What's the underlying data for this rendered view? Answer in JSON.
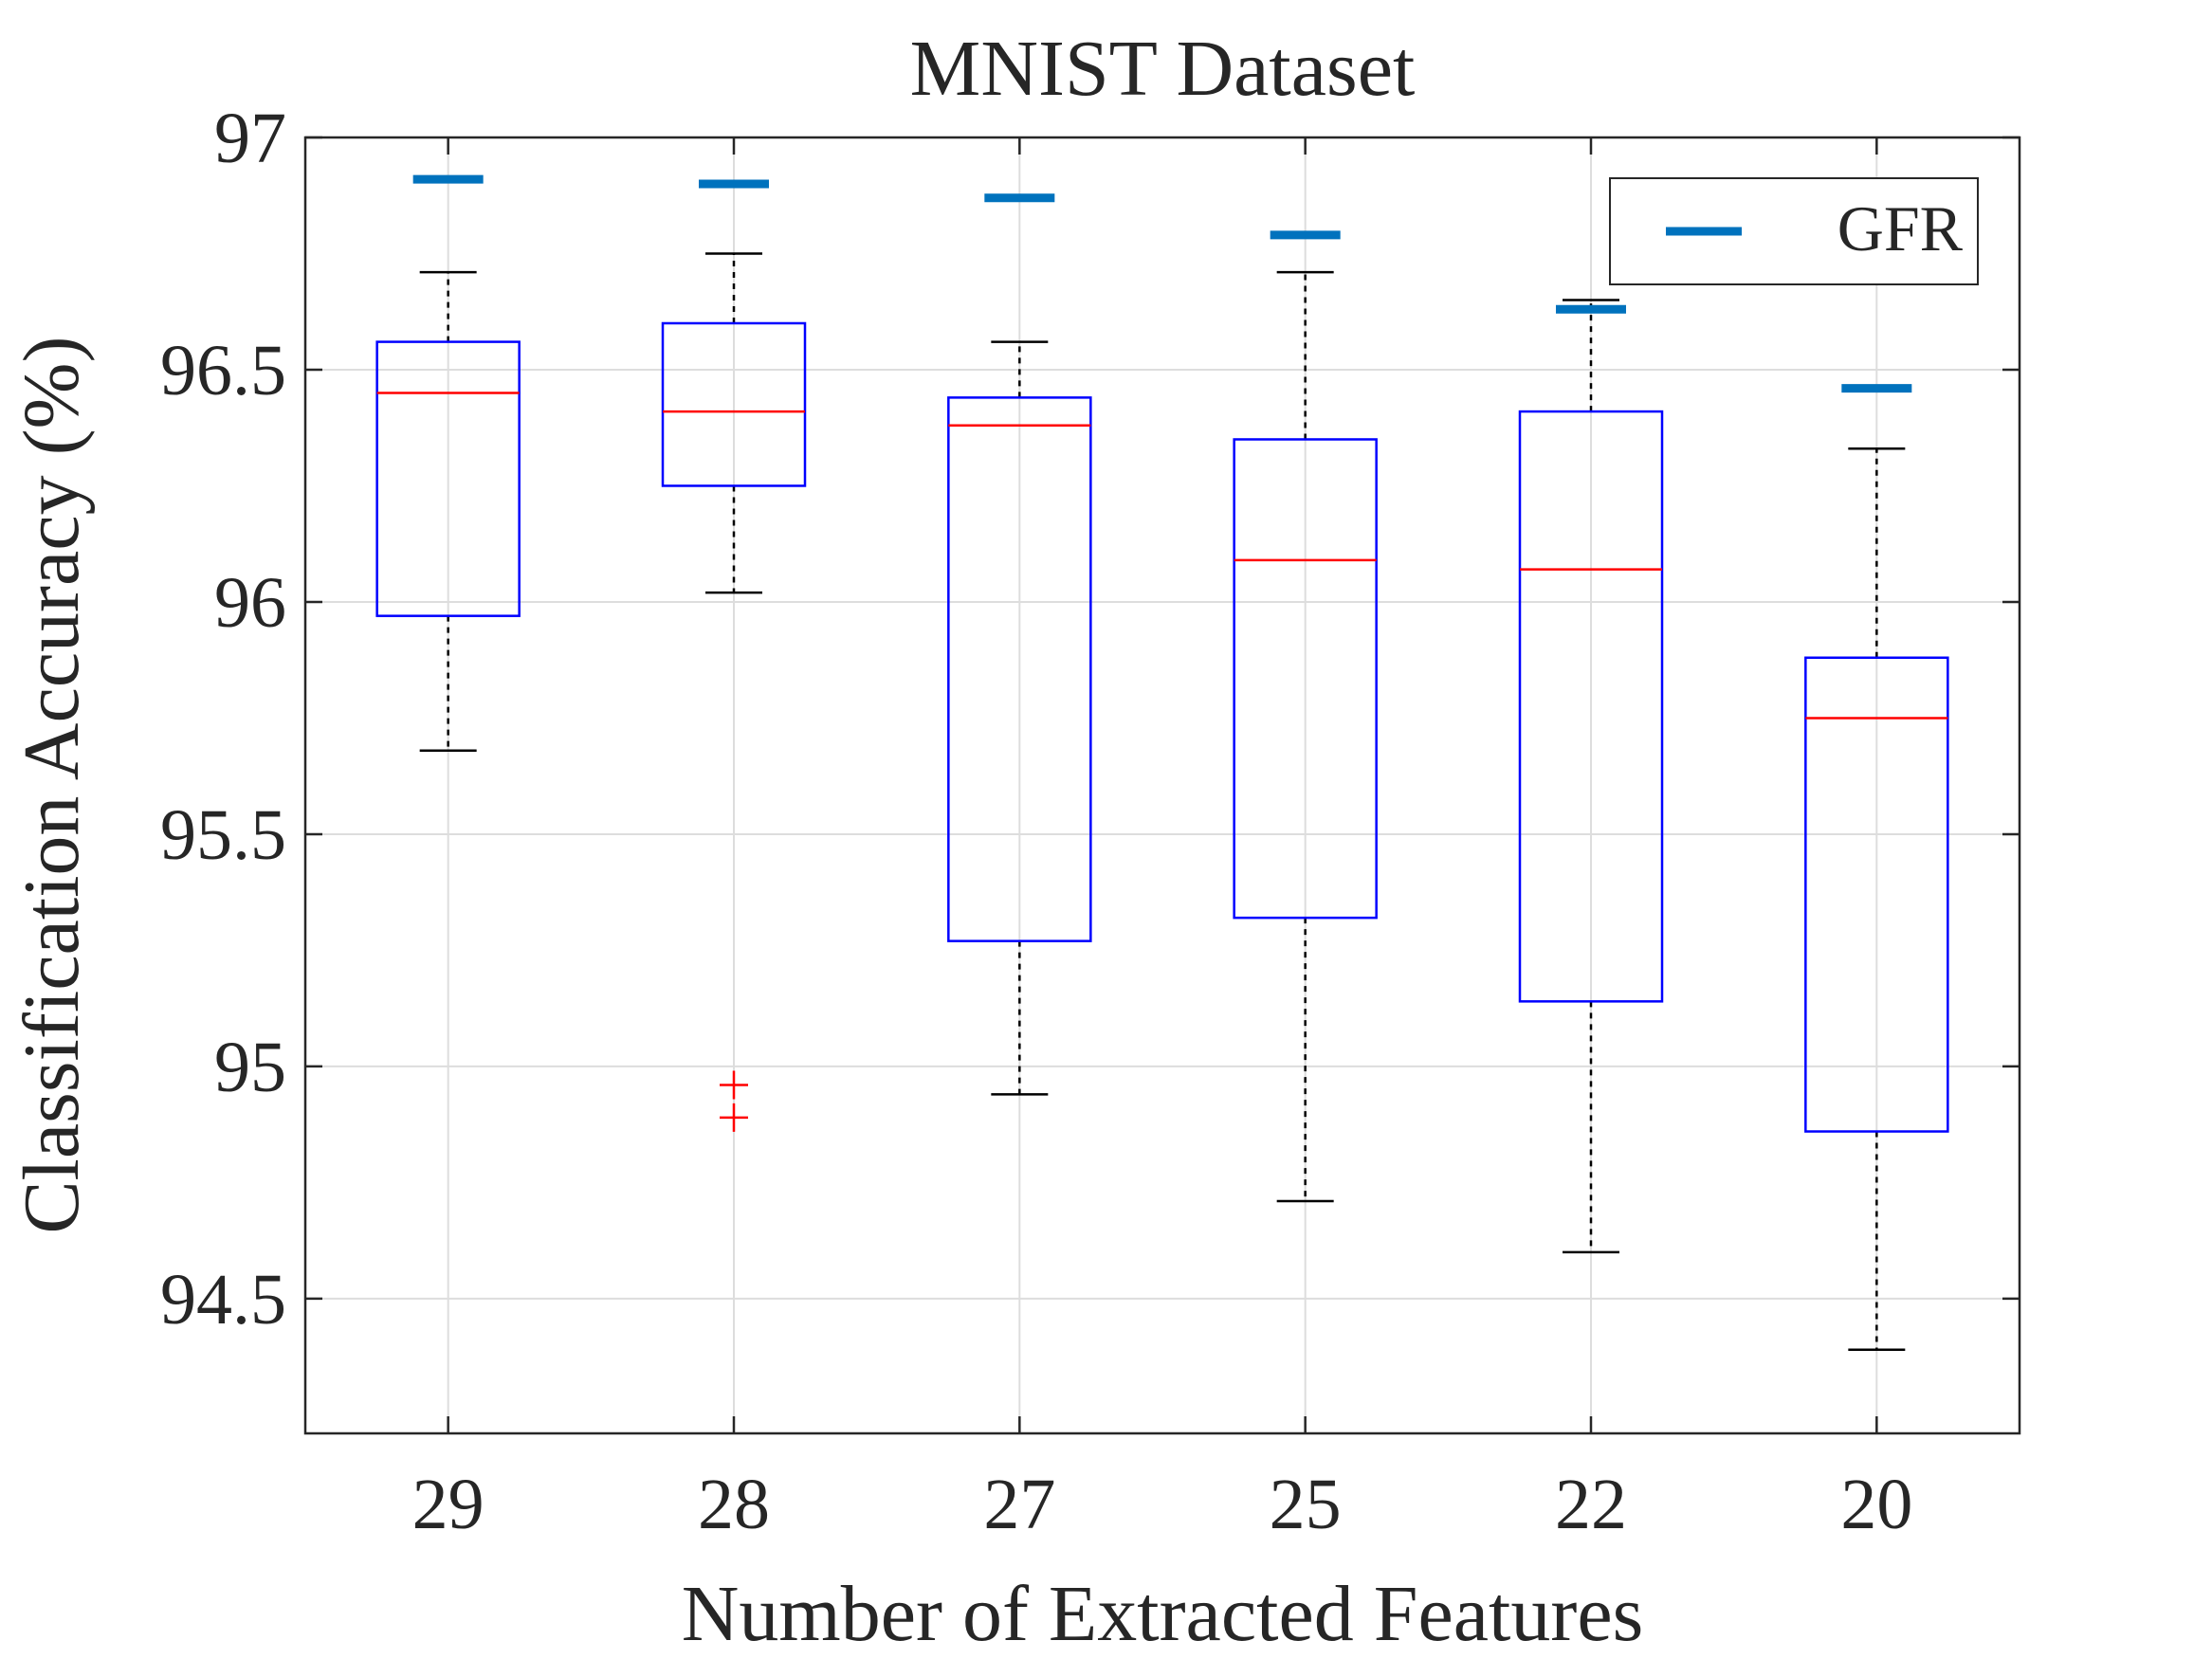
{
  "chart_data": {
    "type": "box",
    "title": "MNIST Dataset",
    "xlabel": "Number of Extracted Features",
    "ylabel": "Classification Accuracy (%)",
    "ylim": [
      94.21,
      97.0
    ],
    "yticks": [
      94.5,
      95,
      95.5,
      96,
      96.5,
      97
    ],
    "ytick_labels": [
      "94.5",
      "95",
      "95.5",
      "96",
      "96.5",
      "97"
    ],
    "grid": true,
    "legend": {
      "location": "top-right",
      "entries": [
        "GFR"
      ]
    },
    "categories": [
      "29",
      "28",
      "27",
      "25",
      "22",
      "20"
    ],
    "boxes": [
      {
        "category": "29",
        "whisker_low": 95.68,
        "q1": 95.97,
        "median": 96.45,
        "q3": 96.56,
        "whisker_high": 96.71,
        "outliers": []
      },
      {
        "category": "28",
        "whisker_low": 96.02,
        "q1": 96.25,
        "median": 96.41,
        "q3": 96.6,
        "whisker_high": 96.75,
        "outliers": [
          94.96,
          94.89
        ]
      },
      {
        "category": "27",
        "whisker_low": 94.94,
        "q1": 95.27,
        "median": 96.38,
        "q3": 96.44,
        "whisker_high": 96.56,
        "outliers": []
      },
      {
        "category": "25",
        "whisker_low": 94.71,
        "q1": 95.32,
        "median": 96.09,
        "q3": 96.35,
        "whisker_high": 96.71,
        "outliers": []
      },
      {
        "category": "22",
        "whisker_low": 94.6,
        "q1": 95.14,
        "median": 96.07,
        "q3": 96.41,
        "whisker_high": 96.65,
        "outliers": []
      },
      {
        "category": "20",
        "whisker_low": 94.39,
        "q1": 94.86,
        "median": 95.75,
        "q3": 95.88,
        "whisker_high": 96.33,
        "outliers": []
      }
    ],
    "series": [
      {
        "name": "GFR",
        "values": [
          96.91,
          96.9,
          96.87,
          96.79,
          96.63,
          96.46
        ]
      }
    ],
    "colors": {
      "box": "#0000ff",
      "median": "#ff0000",
      "whisker": "#000000",
      "outlier": "#ff0000",
      "gfr": "#0072bd",
      "grid": "#dddddd",
      "axis": "#262626"
    }
  }
}
